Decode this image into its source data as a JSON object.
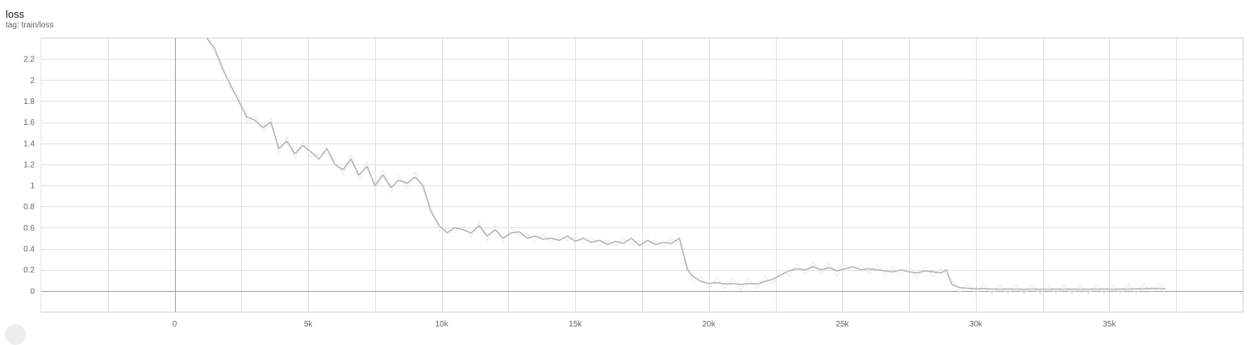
{
  "header": {
    "title": "loss",
    "subtitle": "tag: train/loss"
  },
  "colors": {
    "grid": "#e0e0e0",
    "axis": "#9e9e9e",
    "line_smoothed": "#b2b2b2",
    "line_raw": "#ececec",
    "tick_text": "#666666"
  },
  "chart_data": {
    "type": "line",
    "title": "loss",
    "xlabel": "",
    "ylabel": "",
    "xlim": [
      -5000,
      40000
    ],
    "ylim": [
      -0.2,
      2.4
    ],
    "grid": true,
    "x_ticks": [
      {
        "value": 0,
        "label": "0"
      },
      {
        "value": 5000,
        "label": "5k"
      },
      {
        "value": 10000,
        "label": "10k"
      },
      {
        "value": 15000,
        "label": "15k"
      },
      {
        "value": 20000,
        "label": "20k"
      },
      {
        "value": 25000,
        "label": "25k"
      },
      {
        "value": 30000,
        "label": "30k"
      },
      {
        "value": 35000,
        "label": "35k"
      }
    ],
    "y_ticks": [
      {
        "value": 0,
        "label": "0"
      },
      {
        "value": 0.2,
        "label": "0.2"
      },
      {
        "value": 0.4,
        "label": "0.4"
      },
      {
        "value": 0.6,
        "label": "0.6"
      },
      {
        "value": 0.8,
        "label": "0.8"
      },
      {
        "value": 1,
        "label": "1"
      },
      {
        "value": 1.2,
        "label": "1.2"
      },
      {
        "value": 1.4,
        "label": "1.4"
      },
      {
        "value": 1.6,
        "label": "1.6"
      },
      {
        "value": 1.8,
        "label": "1.8"
      },
      {
        "value": 2,
        "label": "2"
      },
      {
        "value": 2.2,
        "label": "2.2"
      }
    ],
    "series": [
      {
        "x": [
          1200,
          1500,
          1800,
          2100,
          2400,
          2700,
          3000,
          3300,
          3600,
          3900,
          4200,
          4500,
          4800,
          5100,
          5400,
          5700,
          6000,
          6300,
          6600,
          6900,
          7200,
          7500,
          7800,
          8100,
          8400,
          8700,
          9000,
          9300,
          9600,
          9900,
          10200,
          10500,
          10800,
          11100,
          11400,
          11700,
          12000,
          12300,
          12600,
          12900,
          13200,
          13500,
          13800,
          14100,
          14400,
          14700,
          15000,
          15300,
          15600,
          15900,
          16200,
          16500,
          16800,
          17100,
          17400,
          17700,
          18000,
          18300,
          18600,
          18900,
          19200,
          19400,
          19700,
          20000,
          20300,
          20600,
          20900,
          21200,
          21500,
          21800,
          22100,
          22400,
          22700,
          23000,
          23300,
          23600,
          23900,
          24200,
          24500,
          24800,
          25100,
          25400,
          25700,
          26000,
          26300,
          26600,
          26900,
          27200,
          27500,
          27800,
          28100,
          28400,
          28700,
          28900,
          29100,
          29400,
          29700,
          30000,
          30300,
          30600,
          30900,
          31200,
          31500,
          31800,
          32100,
          32400,
          32700,
          33000,
          33300,
          33600,
          33900,
          34200,
          34500,
          34800,
          35100,
          35400,
          35700,
          36000,
          36300,
          36600,
          36900,
          37100
        ],
        "values": [
          2.4,
          2.3,
          2.1,
          1.95,
          1.8,
          1.65,
          1.62,
          1.55,
          1.6,
          1.35,
          1.42,
          1.3,
          1.38,
          1.32,
          1.25,
          1.35,
          1.2,
          1.15,
          1.25,
          1.1,
          1.18,
          1.0,
          1.1,
          0.98,
          1.05,
          1.02,
          1.08,
          1.0,
          0.75,
          0.62,
          0.55,
          0.6,
          0.58,
          0.55,
          0.62,
          0.52,
          0.58,
          0.5,
          0.55,
          0.56,
          0.5,
          0.52,
          0.49,
          0.5,
          0.48,
          0.52,
          0.47,
          0.5,
          0.46,
          0.48,
          0.44,
          0.47,
          0.45,
          0.5,
          0.43,
          0.48,
          0.44,
          0.46,
          0.45,
          0.5,
          0.2,
          0.14,
          0.09,
          0.07,
          0.08,
          0.065,
          0.07,
          0.06,
          0.07,
          0.065,
          0.09,
          0.11,
          0.15,
          0.19,
          0.21,
          0.2,
          0.23,
          0.2,
          0.22,
          0.19,
          0.21,
          0.23,
          0.2,
          0.21,
          0.2,
          0.19,
          0.18,
          0.2,
          0.18,
          0.17,
          0.19,
          0.18,
          0.17,
          0.2,
          0.06,
          0.03,
          0.025,
          0.02,
          0.02,
          0.018,
          0.015,
          0.018,
          0.016,
          0.014,
          0.016,
          0.015,
          0.014,
          0.017,
          0.015,
          0.016,
          0.014,
          0.015,
          0.016,
          0.018,
          0.015,
          0.017,
          0.016,
          0.02,
          0.018,
          0.025,
          0.02,
          0.022
        ]
      }
    ]
  }
}
